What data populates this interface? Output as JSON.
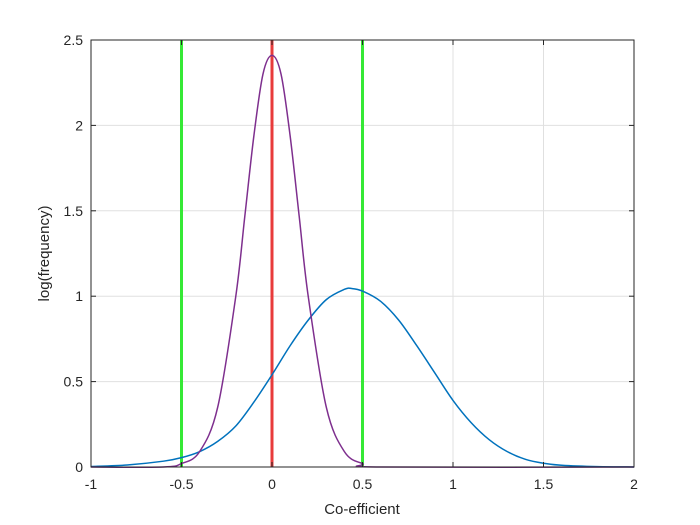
{
  "chart_data": {
    "type": "line",
    "title": "",
    "xlabel": "Co-efficient",
    "ylabel": "log(frequency)",
    "xlim": [
      -1,
      2
    ],
    "ylim": [
      0,
      2.5
    ],
    "xticks": [
      -1,
      -0.5,
      0,
      0.5,
      1,
      1.5,
      2
    ],
    "xtick_labels": [
      "-1",
      "-0.5",
      "0",
      "0.5",
      "1",
      "1.5",
      "2"
    ],
    "yticks": [
      0,
      0.5,
      1,
      1.5,
      2,
      2.5
    ],
    "ytick_labels": [
      "0",
      "0.5",
      "1",
      "1.5",
      "2",
      "2.5"
    ],
    "grid": true,
    "legend": "none",
    "series": [
      {
        "type": "line",
        "color": "#0072bd",
        "x": [
          -1,
          -0.8,
          -0.6,
          -0.5,
          -0.4,
          -0.3,
          -0.2,
          -0.1,
          0,
          0.1,
          0.2,
          0.3,
          0.4,
          0.44,
          0.5,
          0.6,
          0.7,
          0.8,
          0.9,
          1.0,
          1.1,
          1.2,
          1.3,
          1.4,
          1.5,
          1.6,
          1.8,
          2.0
        ],
        "y": [
          0.003,
          0.012,
          0.034,
          0.055,
          0.09,
          0.15,
          0.24,
          0.38,
          0.54,
          0.71,
          0.86,
          0.98,
          1.04,
          1.045,
          1.03,
          0.97,
          0.86,
          0.71,
          0.55,
          0.39,
          0.26,
          0.16,
          0.09,
          0.045,
          0.022,
          0.01,
          0.002,
          0.0003
        ]
      },
      {
        "type": "line",
        "color": "#7e2f8e",
        "x": [
          -1,
          -0.6,
          -0.5,
          -0.4,
          -0.3,
          -0.2,
          -0.15,
          -0.1,
          -0.05,
          0,
          0.05,
          0.1,
          0.15,
          0.2,
          0.3,
          0.4,
          0.5,
          0.6,
          2.0
        ],
        "y": [
          0,
          0.0,
          0.02,
          0.09,
          0.35,
          1.0,
          1.47,
          1.94,
          2.3,
          2.41,
          2.3,
          1.94,
          1.47,
          1.0,
          0.35,
          0.09,
          0.02,
          0.0,
          0
        ]
      }
    ],
    "vlines": [
      {
        "x": -0.5,
        "color": "#35e935"
      },
      {
        "x": 0,
        "color": "#e83b3b"
      },
      {
        "x": 0.5,
        "color": "#35e935"
      }
    ]
  }
}
